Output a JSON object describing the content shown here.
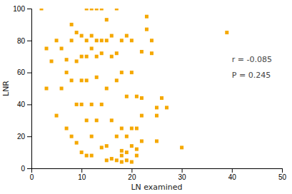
{
  "chart_data": {
    "type": "scatter",
    "x": [
      2,
      3,
      3,
      4,
      5,
      5,
      6,
      6,
      7,
      7,
      7,
      8,
      8,
      8,
      8,
      9,
      9,
      9,
      9,
      10,
      10,
      10,
      10,
      10,
      11,
      11,
      11,
      11,
      11,
      11,
      12,
      12,
      12,
      12,
      12,
      12,
      13,
      13,
      13,
      13,
      13,
      14,
      14,
      14,
      14,
      14,
      15,
      15,
      15,
      15,
      15,
      16,
      16,
      16,
      16,
      17,
      17,
      17,
      17,
      17,
      18,
      18,
      18,
      18,
      18,
      18,
      19,
      19,
      19,
      19,
      19,
      20,
      20,
      20,
      20,
      20,
      21,
      21,
      21,
      21,
      22,
      22,
      22,
      22,
      23,
      23,
      24,
      24,
      25,
      25,
      25,
      26,
      27,
      30,
      39
    ],
    "values": [
      100,
      75,
      50,
      67,
      80,
      33,
      75,
      50,
      68,
      60,
      25,
      90,
      80,
      55,
      20,
      85,
      67,
      40,
      16,
      83,
      70,
      55,
      40,
      10,
      100,
      80,
      70,
      55,
      30,
      8,
      100,
      83,
      75,
      40,
      20,
      8,
      100,
      80,
      70,
      57,
      30,
      100,
      80,
      72,
      40,
      13,
      93,
      80,
      50,
      14,
      5,
      83,
      70,
      30,
      6,
      100,
      72,
      55,
      20,
      5,
      80,
      60,
      25,
      11,
      8,
      4,
      83,
      45,
      20,
      10,
      5,
      80,
      60,
      25,
      14,
      4,
      45,
      25,
      12,
      8,
      73,
      44,
      33,
      17,
      95,
      87,
      80,
      72,
      38,
      33,
      17,
      44,
      38,
      13,
      85
    ],
    "color": "#F5A800",
    "marker": "square",
    "xlim": [
      0,
      50
    ],
    "ylim": [
      0,
      100
    ],
    "xticks": [
      0,
      10,
      20,
      30,
      40,
      50
    ],
    "yticks": [
      0,
      20,
      40,
      60,
      80,
      100
    ],
    "xlabel": "LN examined",
    "ylabel": "LNR",
    "annotations": [
      "r = -0.085",
      "P = 0.245"
    ],
    "grid": false
  }
}
